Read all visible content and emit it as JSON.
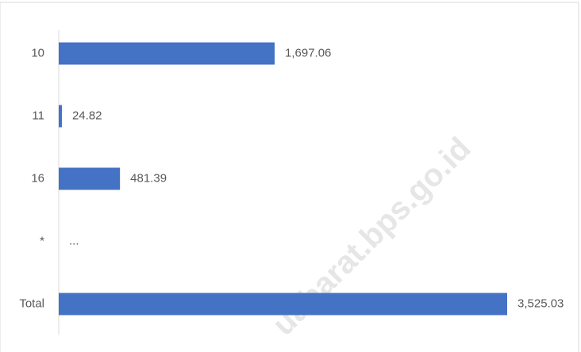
{
  "chart_data": {
    "type": "bar",
    "orientation": "horizontal",
    "categories": [
      "10",
      "11",
      "16",
      "*",
      "Total"
    ],
    "values": [
      1697.06,
      24.82,
      481.39,
      null,
      3525.03
    ],
    "value_labels": [
      "1,697.06",
      "24.82",
      "481.39",
      "...",
      "3,525.03"
    ],
    "color": "#4472c4",
    "annotation": "uabarat.bps.go.id"
  }
}
